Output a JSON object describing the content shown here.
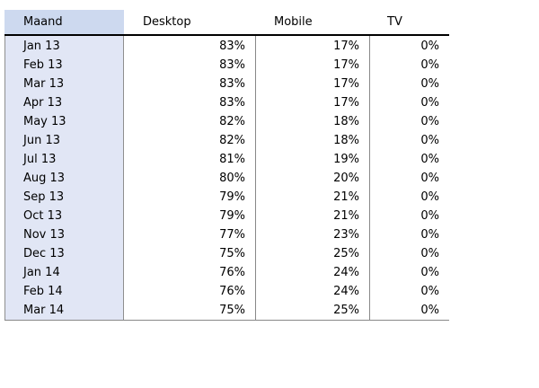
{
  "chart_data": {
    "type": "table",
    "columns": [
      "Maand",
      "Desktop",
      "Mobile",
      "TV"
    ],
    "rows": [
      [
        "Jan 13",
        "83%",
        "17%",
        "0%"
      ],
      [
        "Feb 13",
        "83%",
        "17%",
        "0%"
      ],
      [
        "Mar 13",
        "83%",
        "17%",
        "0%"
      ],
      [
        "Apr 13",
        "83%",
        "17%",
        "0%"
      ],
      [
        "May 13",
        "82%",
        "18%",
        "0%"
      ],
      [
        "Jun 13",
        "82%",
        "18%",
        "0%"
      ],
      [
        "Jul 13",
        "81%",
        "19%",
        "0%"
      ],
      [
        "Aug 13",
        "80%",
        "20%",
        "0%"
      ],
      [
        "Sep 13",
        "79%",
        "21%",
        "0%"
      ],
      [
        "Oct 13",
        "79%",
        "21%",
        "0%"
      ],
      [
        "Nov 13",
        "77%",
        "23%",
        "0%"
      ],
      [
        "Dec 13",
        "75%",
        "25%",
        "0%"
      ],
      [
        "Jan 14",
        "76%",
        "24%",
        "0%"
      ],
      [
        "Feb 14",
        "76%",
        "24%",
        "0%"
      ],
      [
        "Mar 14",
        "75%",
        "25%",
        "0%"
      ]
    ],
    "colors": {
      "header_first_column": "#cdd9ef",
      "first_column": "#e1e6f5"
    }
  }
}
